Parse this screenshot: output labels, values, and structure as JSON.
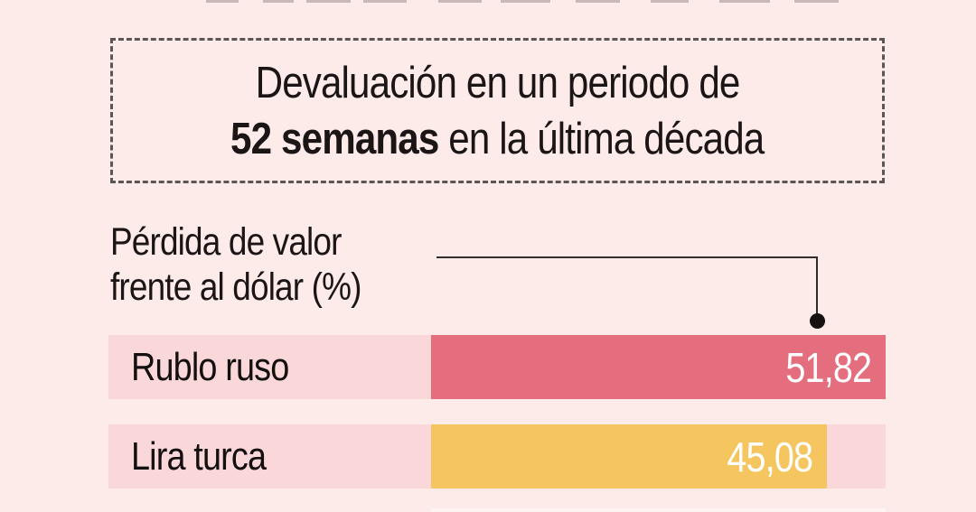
{
  "title_box": {
    "line1": "Devaluación en un periodo de",
    "line2_bold": "52 semanas",
    "line2_rest": " en la última década"
  },
  "axis_label": {
    "line1": "Pérdida de valor",
    "line2": "frente al dólar (%)"
  },
  "chart_data": {
    "type": "bar",
    "orientation": "horizontal",
    "title": "Devaluación en un periodo de 52 semanas en la última década",
    "value_axis_label": "Pérdida de valor frente al dólar (%)",
    "categories": [
      "Rublo ruso",
      "Lira turca"
    ],
    "values": [
      51.82,
      45.08
    ],
    "value_labels": [
      "51,82",
      "45,08"
    ],
    "xlim": [
      0,
      51.82
    ],
    "series_colors": [
      "#e56e7e",
      "#f5c660"
    ],
    "track_color": "#fad7d8",
    "legend": "none",
    "grid": "off",
    "annotation_connector": "line from axis label to first bar"
  },
  "colors": {
    "background": "#fcebe9",
    "text": "#1b1515",
    "value_text": "#ffffff",
    "dashed_border": "#5c5653",
    "connector": "#332c2c"
  }
}
